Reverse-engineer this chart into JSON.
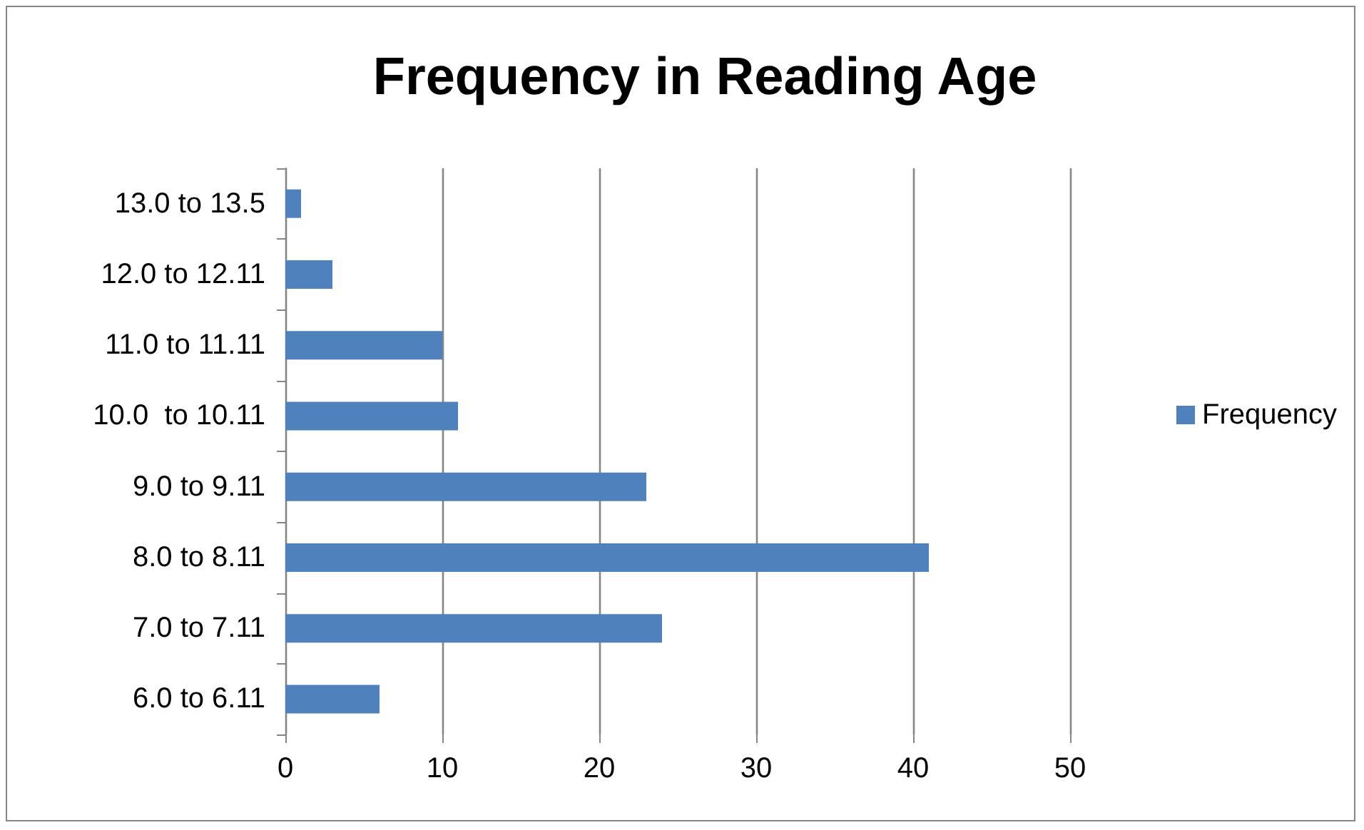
{
  "chart_data": {
    "type": "bar",
    "orientation": "horizontal",
    "title": "Frequency in Reading Age",
    "categories": [
      "13.0 to 13.5",
      "12.0 to 12.11",
      "11.0 to 11.11",
      "10.0  to 10.11",
      "9.0 to 9.11",
      "8.0 to 8.11",
      "7.0 to 7.11",
      "6.0 to 6.11"
    ],
    "series": [
      {
        "name": "Frequency",
        "color": "#4f81bd",
        "values": [
          1,
          3,
          10,
          11,
          23,
          41,
          24,
          6
        ]
      }
    ],
    "xlim": [
      0,
      50
    ],
    "xticks": [
      0,
      10,
      20,
      30,
      40,
      50
    ],
    "grid": "x",
    "legend": "right"
  }
}
